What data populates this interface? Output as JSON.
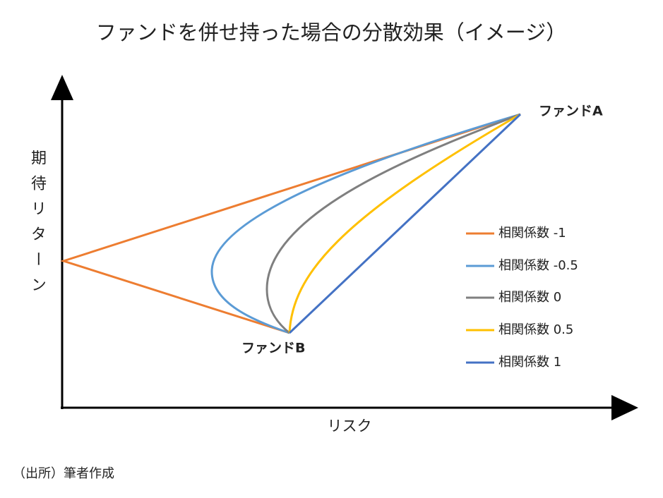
{
  "title": "ファンドを併せ持った場合の分散効果（イメージ）",
  "y_axis_label": "期待リターン",
  "x_axis_label": "リスク",
  "points": {
    "a": "ファンドA",
    "b": "ファンドB"
  },
  "legend": [
    "相関係数 -1",
    "相関係数 -0.5",
    "相関係数 0",
    "相関係数 0.5",
    "相関係数 1"
  ],
  "source": "（出所）筆者作成"
}
